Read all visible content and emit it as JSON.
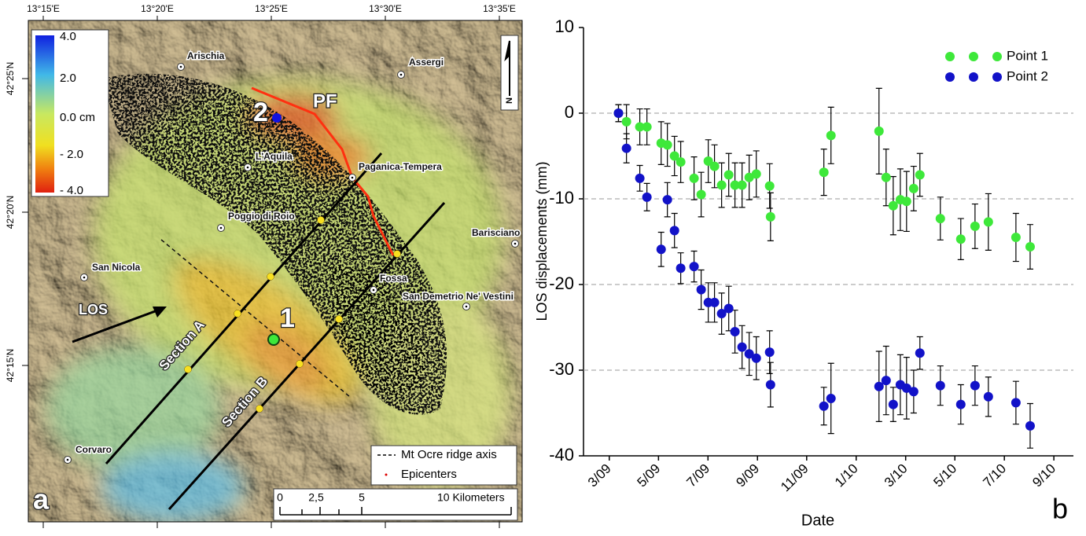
{
  "map": {
    "panel_label": "a",
    "lon_ticks": [
      "13°15'E",
      "13°20'E",
      "13°25'E",
      "13°30'E",
      "13°35'E"
    ],
    "lat_ticks": [
      "42°25'N",
      "42°20'N",
      "42°15'N"
    ],
    "colorbar": [
      "4.0",
      "2.0",
      "0.0 cm",
      "- 2.0",
      "- 4.0"
    ],
    "towns": [
      "Arischia",
      "Assergi",
      "L'Aquila",
      "Paganica-Tempera",
      "Poggio di Roio",
      "Barisciano",
      "San Nicola",
      "Fossa",
      "San Demetrio Ne' Vestini",
      "Corvaro"
    ],
    "fault_label": "PF",
    "point_labels": [
      "1",
      "2"
    ],
    "los_label": "LOS",
    "sections": [
      "Section A",
      "Section B"
    ],
    "legend": [
      "Mt Ocre ridge axis",
      "Epicenters"
    ],
    "north": "N",
    "scale": {
      "ticks": [
        "0",
        "2,5",
        "5"
      ],
      "label": "10 Kilometers"
    }
  },
  "chart_data": {
    "type": "scatter",
    "panel_label": "b",
    "x_label": "Date",
    "y_label": "LOS displacements (mm)",
    "x": [
      2009.198,
      2009.225,
      2009.27,
      2009.294,
      2009.342,
      2009.363,
      2009.387,
      2009.408,
      2009.453,
      2009.477,
      2009.501,
      2009.522,
      2009.546,
      2009.57,
      2009.591,
      2009.615,
      2009.639,
      2009.663,
      2009.708,
      2009.711,
      2009.891,
      2009.915,
      2010.077,
      2010.101,
      2010.125,
      2010.149,
      2010.17,
      2010.194,
      2010.215,
      2010.284,
      2010.353,
      2010.401,
      2010.446,
      2010.539,
      2010.587
    ],
    "series": [
      {
        "name": "Point 1",
        "color": "#3ee83a",
        "values": [
          0,
          -1.0,
          -1.6,
          -1.6,
          -3.5,
          -3.7,
          -5.0,
          -5.7,
          -7.6,
          -9.5,
          -5.6,
          -6.2,
          -8.4,
          -7.2,
          -8.4,
          -8.4,
          -7.5,
          -7.1,
          -8.5,
          -12.1,
          -6.9,
          -2.6,
          -2.1,
          -7.5,
          -10.8,
          -10.1,
          -10.3,
          -8.8,
          -7.2,
          -12.3,
          -14.7,
          -13.2,
          -12.7,
          -14.5,
          -15.6
        ],
        "errors": [
          1.0,
          2.0,
          2.1,
          2.1,
          2.5,
          2.5,
          2.3,
          2.4,
          2.5,
          2.6,
          2.5,
          2.5,
          2.6,
          2.5,
          2.6,
          2.6,
          2.6,
          2.7,
          2.6,
          2.8,
          2.7,
          3.3,
          5.0,
          3.3,
          3.4,
          3.6,
          3.5,
          2.6,
          2.5,
          2.5,
          2.4,
          2.6,
          3.3,
          2.8,
          2.6
        ]
      },
      {
        "name": "Point 2",
        "color": "#1212c8",
        "values": [
          0,
          -4.1,
          -7.6,
          -9.8,
          -15.9,
          -10.1,
          -13.7,
          -18.1,
          -17.9,
          -20.6,
          -22.1,
          -22.1,
          -23.4,
          -22.8,
          -25.5,
          -27.3,
          -28.1,
          -28.6,
          -27.9,
          -31.7,
          -34.2,
          -33.3,
          -31.9,
          -31.2,
          -34.0,
          -31.7,
          -32.1,
          -32.5,
          -28.0,
          -31.8,
          -34.0,
          -31.8,
          -33.1,
          -33.8,
          -36.5
        ],
        "errors": [
          1.0,
          1.7,
          1.5,
          1.6,
          2.0,
          2.0,
          2.0,
          1.8,
          1.8,
          2.3,
          2.3,
          2.3,
          2.4,
          2.6,
          2.5,
          2.5,
          2.5,
          2.5,
          2.5,
          2.6,
          2.2,
          4.1,
          4.1,
          4.0,
          2.0,
          3.5,
          3.6,
          2.5,
          1.9,
          2.3,
          2.3,
          2.3,
          2.3,
          2.5,
          2.6
        ]
      }
    ],
    "xlim": [
      2009.08,
      2010.733
    ],
    "xticks": [
      {
        "value": 2009.167,
        "label": "3/09"
      },
      {
        "value": 2009.333,
        "label": "5/09"
      },
      {
        "value": 2009.5,
        "label": "7/09"
      },
      {
        "value": 2009.667,
        "label": "9/09"
      },
      {
        "value": 2009.833,
        "label": "11/09"
      },
      {
        "value": 2010.0,
        "label": "1/10"
      },
      {
        "value": 2010.167,
        "label": "3/10"
      },
      {
        "value": 2010.333,
        "label": "5/10"
      },
      {
        "value": 2010.5,
        "label": "7/10"
      },
      {
        "value": 2010.667,
        "label": "9/10"
      }
    ],
    "ylim": [
      -40,
      10
    ],
    "yticks": [
      10,
      0,
      -10,
      -20,
      -30,
      -40
    ],
    "grid": true,
    "legend": "upper right"
  }
}
